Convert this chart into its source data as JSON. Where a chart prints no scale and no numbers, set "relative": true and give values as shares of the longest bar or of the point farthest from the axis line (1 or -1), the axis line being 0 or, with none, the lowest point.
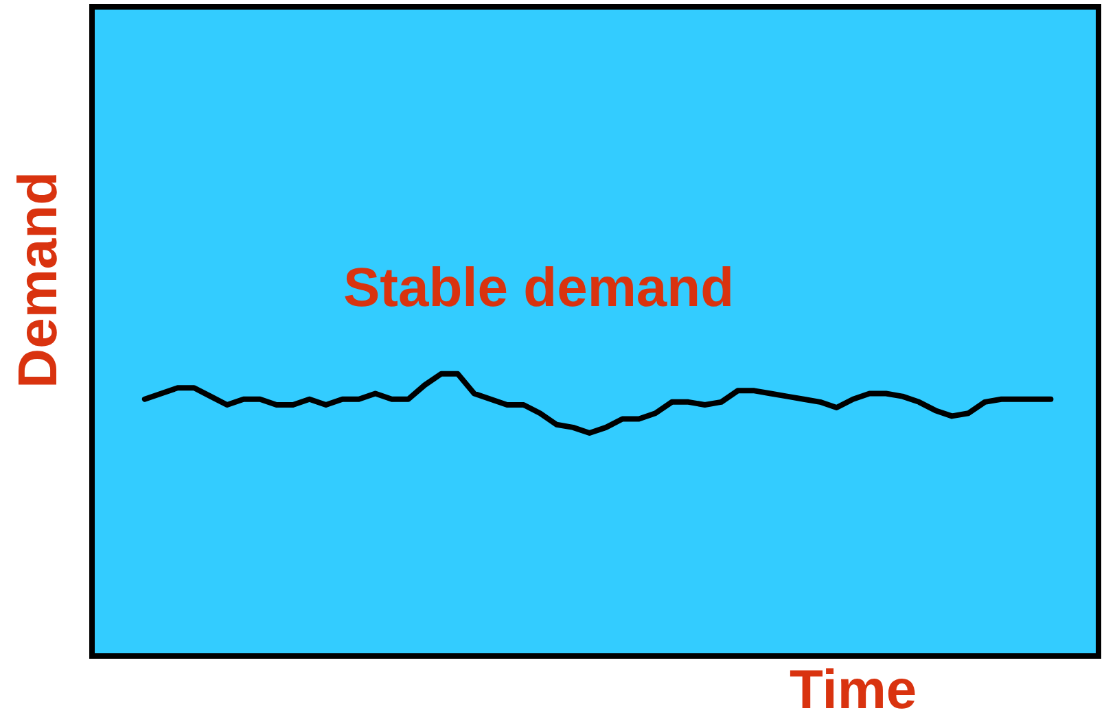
{
  "chart_data": {
    "type": "line",
    "relative": true,
    "xlabel": "Time",
    "ylabel": "Demand",
    "annotations": [
      "Stable demand"
    ],
    "categories": [
      null,
      null,
      null,
      null,
      null,
      null,
      null,
      null,
      null,
      null,
      null,
      null,
      null,
      null,
      null,
      null,
      null,
      null,
      null,
      null,
      null,
      null,
      null,
      null,
      null,
      null,
      null,
      null,
      null,
      null,
      null,
      null,
      null,
      null,
      null,
      null,
      null,
      null,
      null,
      null,
      null,
      null,
      null,
      null,
      null,
      null,
      null,
      null,
      null,
      null,
      null,
      null,
      null,
      null,
      null,
      null
    ],
    "series": [
      {
        "color": "#000000",
        "values": [
          0.91,
          0.93,
          0.95,
          0.95,
          0.92,
          0.89,
          0.91,
          0.91,
          0.89,
          0.89,
          0.91,
          0.89,
          0.91,
          0.91,
          0.93,
          0.91,
          0.91,
          0.96,
          1,
          1,
          0.93,
          0.91,
          0.89,
          0.89,
          0.86,
          0.82,
          0.81,
          0.79,
          0.81,
          0.84,
          0.84,
          0.86,
          0.9,
          0.9,
          0.89,
          0.9,
          0.94,
          0.94,
          0.93,
          0.92,
          0.91,
          0.9,
          0.88,
          0.91,
          0.93,
          0.93,
          0.92,
          0.9,
          0.87,
          0.85,
          0.86,
          0.9,
          0.91,
          0.91,
          0.91,
          0.91
        ]
      }
    ],
    "marker": "none",
    "line_style": "solid"
  }
}
